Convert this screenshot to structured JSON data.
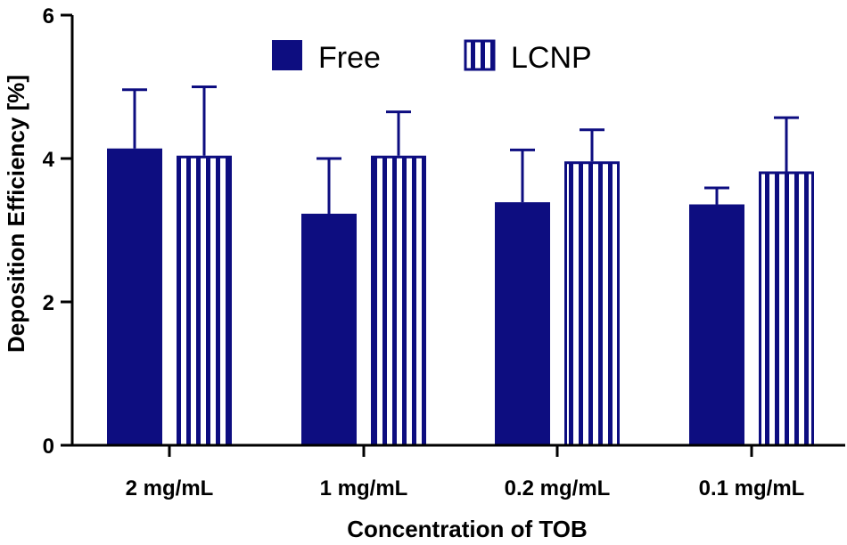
{
  "chart_data": {
    "type": "bar",
    "title": "",
    "xlabel": "Concentration of  TOB",
    "ylabel": "Deposition Efficiency [%]",
    "ylim": [
      0,
      6
    ],
    "yticks": [
      0,
      2,
      4,
      6
    ],
    "categories": [
      "2 mg/mL",
      "1 mg/mL",
      "0.2 mg/mL",
      "0.1 mg/mL"
    ],
    "series": [
      {
        "name": "Free",
        "pattern": "solid",
        "values": [
          4.14,
          3.23,
          3.39,
          3.36
        ],
        "errors": [
          0.82,
          0.77,
          0.73,
          0.23
        ]
      },
      {
        "name": "LCNP",
        "pattern": "vertical-stripes",
        "values": [
          4.04,
          4.04,
          3.96,
          3.82
        ],
        "errors": [
          0.96,
          0.61,
          0.44,
          0.75
        ]
      }
    ],
    "legend_position": "top-center",
    "grid": false,
    "colors": {
      "bar": "#0d0d80",
      "axis": "#000000",
      "background": "#ffffff"
    }
  }
}
